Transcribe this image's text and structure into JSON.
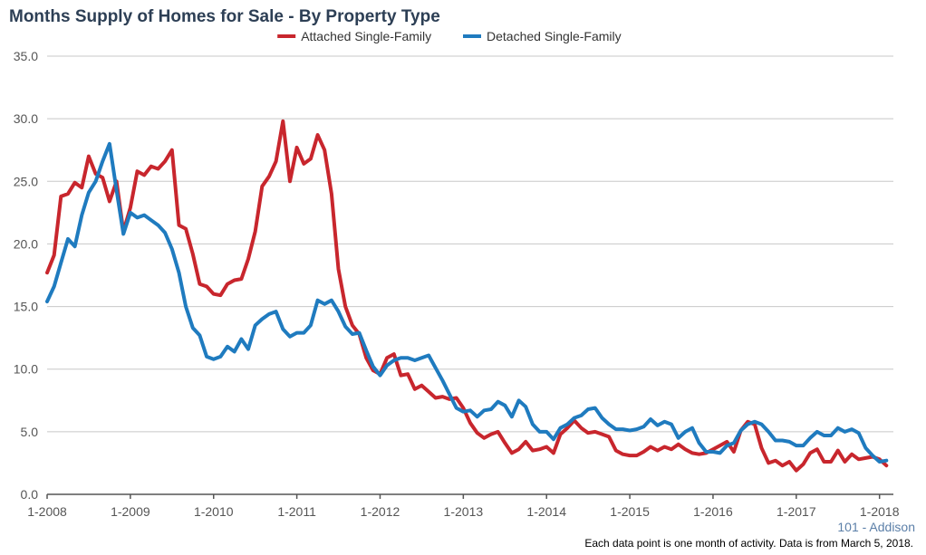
{
  "chart_data": {
    "type": "line",
    "title": "Months Supply of Homes for Sale - By Property Type",
    "xlabel": "",
    "ylabel": "",
    "ylim": [
      0,
      35
    ],
    "yticks": [
      "0.0",
      "5.0",
      "10.0",
      "15.0",
      "20.0",
      "25.0",
      "30.0",
      "35.0"
    ],
    "xticks": [
      "1-2008",
      "1-2009",
      "1-2010",
      "1-2011",
      "1-2012",
      "1-2013",
      "1-2014",
      "1-2015",
      "1-2016",
      "1-2017",
      "1-2018"
    ],
    "grid": true,
    "legend_position": "top-center",
    "x_start": "2008-01",
    "x_step": "1 month",
    "series": [
      {
        "name": "Attached Single-Family",
        "color": "#c8262d",
        "values": [
          17.7,
          19.1,
          23.8,
          24.0,
          24.9,
          24.5,
          27.0,
          25.6,
          25.3,
          23.4,
          25.0,
          21.0,
          22.9,
          25.8,
          25.5,
          26.2,
          26.0,
          26.6,
          27.5,
          21.5,
          21.2,
          19.2,
          16.8,
          16.6,
          16.0,
          15.9,
          16.8,
          17.1,
          17.2,
          18.8,
          21.0,
          24.6,
          25.4,
          26.6,
          29.8,
          25.0,
          27.7,
          26.4,
          26.8,
          28.7,
          27.5,
          24.0,
          18.0,
          15.0,
          13.5,
          12.8,
          10.9,
          9.9,
          9.6,
          10.9,
          11.2,
          9.5,
          9.6,
          8.4,
          8.7,
          8.2,
          7.7,
          7.8,
          7.6,
          7.7,
          6.9,
          5.7,
          4.9,
          4.5,
          4.8,
          5.0,
          4.1,
          3.3,
          3.6,
          4.2,
          3.5,
          3.6,
          3.8,
          3.3,
          4.8,
          5.3,
          5.9,
          5.3,
          4.9,
          5.0,
          4.8,
          4.6,
          3.5,
          3.2,
          3.1,
          3.1,
          3.4,
          3.8,
          3.5,
          3.8,
          3.6,
          4.0,
          3.6,
          3.3,
          3.2,
          3.3,
          3.6,
          3.9,
          4.2,
          3.4,
          5.1,
          5.8,
          5.6,
          3.7,
          2.5,
          2.7,
          2.3,
          2.6,
          1.9,
          2.4,
          3.3,
          3.6,
          2.6,
          2.6,
          3.5,
          2.6,
          3.2,
          2.8,
          2.9,
          3.0,
          2.8,
          2.3
        ]
      },
      {
        "name": "Detached Single-Family",
        "color": "#1f7bbf",
        "values": [
          15.4,
          16.6,
          18.5,
          20.4,
          19.8,
          22.3,
          24.1,
          25.0,
          26.6,
          28.0,
          24.3,
          20.8,
          22.5,
          22.1,
          22.3,
          21.9,
          21.5,
          20.9,
          19.6,
          17.7,
          15.0,
          13.3,
          12.7,
          11.0,
          10.8,
          11.0,
          11.8,
          11.4,
          12.4,
          11.6,
          13.5,
          14.0,
          14.4,
          14.6,
          13.2,
          12.6,
          12.9,
          12.9,
          13.5,
          15.5,
          15.2,
          15.5,
          14.6,
          13.4,
          12.8,
          12.9,
          11.5,
          10.2,
          9.5,
          10.3,
          10.7,
          10.9,
          10.9,
          10.7,
          10.9,
          11.1,
          10.1,
          9.1,
          8.0,
          6.9,
          6.6,
          6.7,
          6.2,
          6.7,
          6.8,
          7.4,
          7.1,
          6.2,
          7.5,
          7.0,
          5.6,
          5.0,
          5.0,
          4.4,
          5.3,
          5.6,
          6.1,
          6.3,
          6.8,
          6.9,
          6.1,
          5.6,
          5.2,
          5.2,
          5.1,
          5.2,
          5.4,
          6.0,
          5.5,
          5.8,
          5.6,
          4.5,
          5.0,
          5.3,
          4.1,
          3.4,
          3.4,
          3.3,
          3.9,
          4.1,
          5.1,
          5.6,
          5.8,
          5.6,
          5.0,
          4.3,
          4.3,
          4.2,
          3.9,
          3.9,
          4.5,
          5.0,
          4.7,
          4.7,
          5.3,
          5.0,
          5.2,
          4.9,
          3.7,
          3.1,
          2.6,
          2.7
        ]
      }
    ]
  },
  "region_label": "101 - Addison",
  "footnote": "Each data point is one month of activity. Data is from March 5, 2018."
}
